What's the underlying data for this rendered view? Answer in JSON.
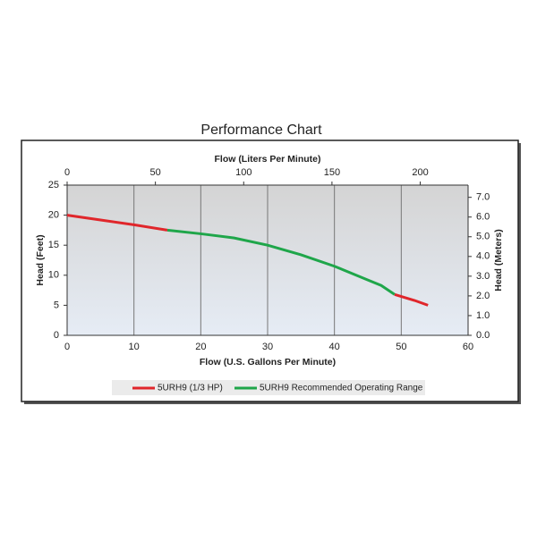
{
  "chart_data": {
    "type": "line",
    "title": "Performance Chart",
    "x_label": "Flow (U.S. Gallons Per Minute)",
    "x2_label": "Flow (Liters Per Minute)",
    "y_label": "Head (Feet)",
    "y2_label": "Head (Meters)",
    "x": [
      0,
      5,
      10,
      15,
      20,
      25,
      30,
      35,
      40,
      45,
      47,
      49,
      52,
      54
    ],
    "series": [
      {
        "name": "5URH9 (1/3 HP)",
        "color": "#e0262b",
        "values": [
          20,
          19.2,
          18.4,
          17.5,
          null,
          null,
          null,
          null,
          null,
          null,
          null,
          6.8,
          5.8,
          5.0
        ]
      },
      {
        "name": "5URH9 Recommended Operating Range",
        "color": "#1fa64a",
        "values": [
          null,
          null,
          null,
          17.5,
          16.9,
          16.2,
          15,
          13.4,
          11.5,
          9.2,
          8.3,
          6.8,
          null,
          null
        ]
      }
    ],
    "xlim": [
      0,
      60
    ],
    "xticks": [
      0,
      10,
      20,
      30,
      40,
      50,
      60
    ],
    "x2lim": [
      0,
      227.1
    ],
    "x2ticks": [
      0,
      50,
      100,
      150,
      200
    ],
    "ylim": [
      0,
      25
    ],
    "yticks": [
      0,
      5,
      10,
      15,
      20,
      25
    ],
    "y2lim": [
      0,
      7.62
    ],
    "y2ticks": [
      {
        "value": 0,
        "label": "0.0"
      },
      {
        "value": 1,
        "label": "1.0"
      },
      {
        "value": 2,
        "label": "2.0"
      },
      {
        "value": 3,
        "label": "3.0"
      },
      {
        "value": 4,
        "label": "4.0"
      },
      {
        "value": 5,
        "label": "5.0"
      },
      {
        "value": 6,
        "label": "6.0"
      },
      {
        "value": 7,
        "label": "7.0"
      }
    ],
    "grid": "x",
    "legend": "bottom"
  }
}
